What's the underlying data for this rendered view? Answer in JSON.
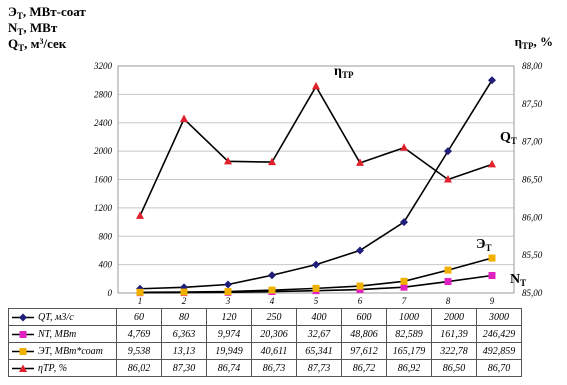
{
  "left_axis_labels": [
    "Э",
    "Т",
    ", МВт-соат",
    "N",
    "Т",
    ", МВт",
    "Q",
    "Т",
    ", м",
    "3",
    "/сек"
  ],
  "right_axis_label": {
    "main": "η",
    "sub": "ТР",
    "unit": ", %"
  },
  "series_tags": {
    "eta_main": "η",
    "eta_sub": "ТР",
    "q_main": "Q",
    "q_sub": "Т",
    "e_main": "Э",
    "e_sub": "Т",
    "n_main": "N",
    "n_sub": "Т"
  },
  "chart_data": {
    "type": "line",
    "x": [
      "1",
      "2",
      "3",
      "4",
      "5",
      "6",
      "7",
      "8",
      "9"
    ],
    "y_left": {
      "min": 0,
      "max": 3200,
      "ticks": [
        "0",
        "400",
        "800",
        "1200",
        "1600",
        "2000",
        "2400",
        "2800",
        "3200"
      ]
    },
    "y_right": {
      "min": 85.0,
      "max": 88.0,
      "ticks": [
        "85,00",
        "85,50",
        "86,00",
        "86,50",
        "87,00",
        "87,50",
        "88,00"
      ]
    },
    "series": [
      {
        "name": "QT, м3/с",
        "axis": "left",
        "color": "#000000",
        "marker": "diamond",
        "marker_color": "#1f1f7a",
        "values": [
          60,
          80,
          120,
          250,
          400,
          600,
          1000,
          2000,
          3000
        ],
        "labels": [
          "60",
          "80",
          "120",
          "250",
          "400",
          "600",
          "1000",
          "2000",
          "3000"
        ]
      },
      {
        "name": "NT, МВт",
        "axis": "left",
        "color": "#000000",
        "marker": "square",
        "marker_color": "#e020c0",
        "values": [
          4.769,
          6.363,
          9.974,
          20.306,
          32.67,
          48.806,
          82.589,
          161.39,
          246.429
        ],
        "labels": [
          "4,769",
          "6,363",
          "9,974",
          "20,306",
          "32,67",
          "48,806",
          "82,589",
          "161,39",
          "246,429"
        ]
      },
      {
        "name": "ЭТ, МВт*соат",
        "axis": "left",
        "color": "#000000",
        "marker": "square",
        "marker_color": "#f0b000",
        "values": [
          9.538,
          13.13,
          19.949,
          40.611,
          65.341,
          97.612,
          165.179,
          322.78,
          492.859
        ],
        "labels": [
          "9,538",
          "13,13",
          "19,949",
          "40,611",
          "65,341",
          "97,612",
          "165,179",
          "322,78",
          "492,859"
        ]
      },
      {
        "name": "ηТР, %",
        "axis": "right",
        "color": "#000000",
        "marker": "triangle",
        "marker_color": "#e0202a",
        "values": [
          86.02,
          87.3,
          86.74,
          86.73,
          87.73,
          86.72,
          86.92,
          86.5,
          86.7
        ],
        "labels": [
          "86,02",
          "87,30",
          "86,74",
          "86,73",
          "87,73",
          "86,72",
          "86,92",
          "86,50",
          "86,70"
        ]
      }
    ]
  }
}
